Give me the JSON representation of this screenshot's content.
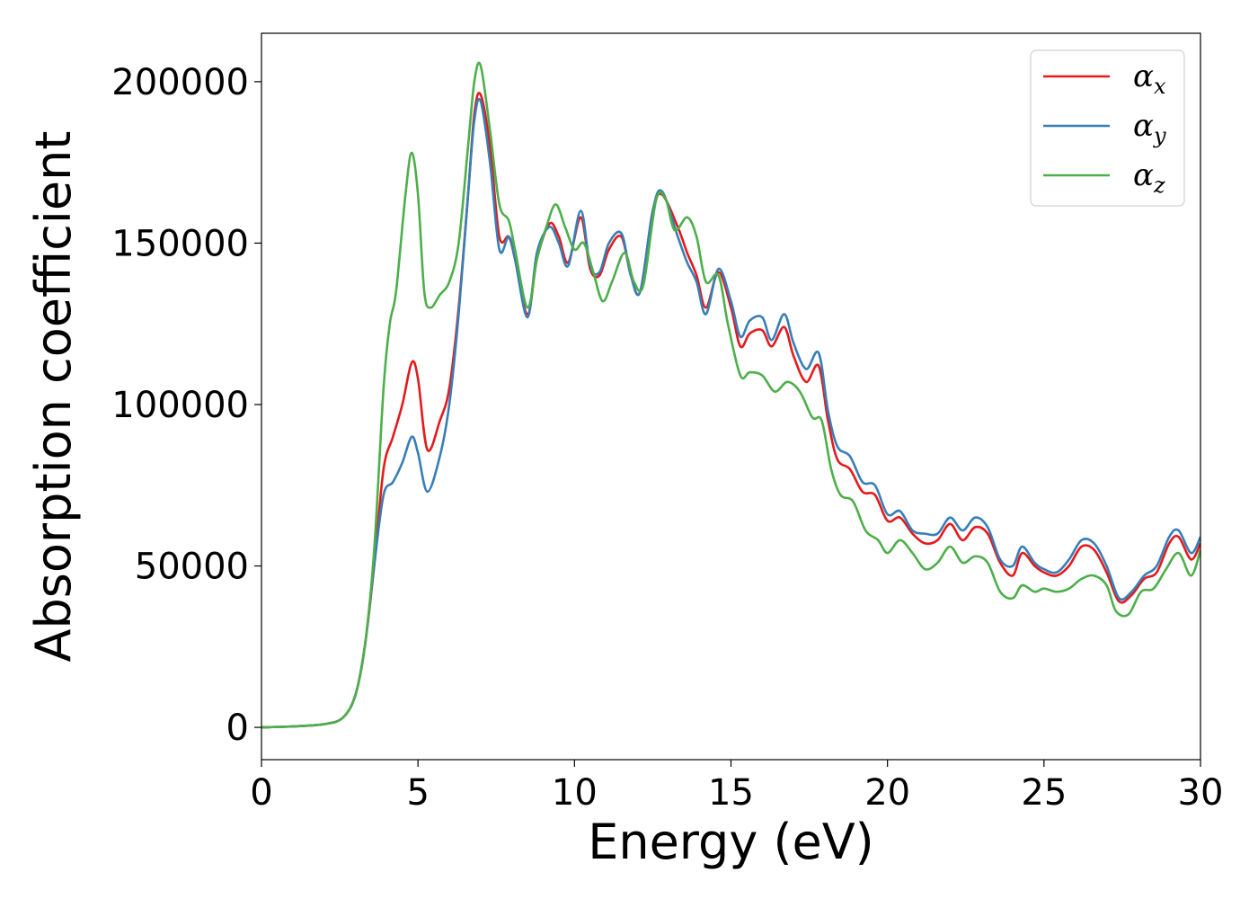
{
  "chart_data": {
    "type": "line",
    "title": "",
    "xlabel": "Energy (eV)",
    "ylabel": "Absorption coefficient",
    "xlim": [
      0,
      30
    ],
    "ylim": [
      -10000,
      215000
    ],
    "xticks": [
      0,
      5,
      10,
      15,
      20,
      25,
      30
    ],
    "yticks": [
      0,
      50000,
      100000,
      150000,
      200000
    ],
    "grid": false,
    "legend_position": "top-right",
    "series": [
      {
        "name": "αx",
        "symbol": "α",
        "subscript": "x",
        "color": "#e41a1c",
        "points": [
          [
            0,
            0
          ],
          [
            1,
            300
          ],
          [
            2,
            1000
          ],
          [
            2.6,
            3000
          ],
          [
            3.0,
            10000
          ],
          [
            3.3,
            25000
          ],
          [
            3.6,
            50000
          ],
          [
            3.9,
            80000
          ],
          [
            4.2,
            90000
          ],
          [
            4.5,
            100000
          ],
          [
            4.8,
            113000
          ],
          [
            5.0,
            108000
          ],
          [
            5.3,
            86000
          ],
          [
            5.7,
            95000
          ],
          [
            6.0,
            105000
          ],
          [
            6.3,
            130000
          ],
          [
            6.6,
            165000
          ],
          [
            6.8,
            190000
          ],
          [
            7.0,
            196000
          ],
          [
            7.3,
            180000
          ],
          [
            7.6,
            152000
          ],
          [
            7.9,
            152000
          ],
          [
            8.1,
            145000
          ],
          [
            8.5,
            128000
          ],
          [
            8.8,
            145000
          ],
          [
            9.2,
            156000
          ],
          [
            9.5,
            152000
          ],
          [
            9.8,
            144000
          ],
          [
            10.2,
            158000
          ],
          [
            10.5,
            142000
          ],
          [
            10.8,
            140000
          ],
          [
            11.1,
            148000
          ],
          [
            11.5,
            152000
          ],
          [
            11.8,
            140000
          ],
          [
            12.1,
            135000
          ],
          [
            12.5,
            160000
          ],
          [
            12.8,
            165000
          ],
          [
            13.3,
            155000
          ],
          [
            13.6,
            147000
          ],
          [
            13.9,
            140000
          ],
          [
            14.2,
            130000
          ],
          [
            14.6,
            141000
          ],
          [
            15.0,
            130000
          ],
          [
            15.3,
            118000
          ],
          [
            15.6,
            122000
          ],
          [
            16.0,
            123000
          ],
          [
            16.3,
            118000
          ],
          [
            16.7,
            124000
          ],
          [
            17.0,
            115000
          ],
          [
            17.4,
            107000
          ],
          [
            17.8,
            112000
          ],
          [
            18.1,
            95000
          ],
          [
            18.4,
            83000
          ],
          [
            18.8,
            80000
          ],
          [
            19.2,
            73000
          ],
          [
            19.6,
            72000
          ],
          [
            20.0,
            64000
          ],
          [
            20.4,
            65000
          ],
          [
            20.8,
            60000
          ],
          [
            21.2,
            57000
          ],
          [
            21.6,
            58000
          ],
          [
            22.0,
            63000
          ],
          [
            22.4,
            58000
          ],
          [
            22.8,
            62000
          ],
          [
            23.2,
            60000
          ],
          [
            23.6,
            51000
          ],
          [
            24.0,
            47000
          ],
          [
            24.3,
            54000
          ],
          [
            24.7,
            50000
          ],
          [
            25.0,
            48000
          ],
          [
            25.4,
            47000
          ],
          [
            25.8,
            50000
          ],
          [
            26.2,
            56000
          ],
          [
            26.6,
            55000
          ],
          [
            27.0,
            48000
          ],
          [
            27.4,
            39000
          ],
          [
            27.8,
            41000
          ],
          [
            28.2,
            46000
          ],
          [
            28.6,
            48000
          ],
          [
            29.0,
            57000
          ],
          [
            29.3,
            59000
          ],
          [
            29.7,
            52000
          ],
          [
            30.0,
            57000
          ]
        ]
      },
      {
        "name": "αy",
        "symbol": "α",
        "subscript": "y",
        "color": "#377eb8",
        "points": [
          [
            0,
            0
          ],
          [
            1,
            300
          ],
          [
            2,
            1000
          ],
          [
            2.6,
            3000
          ],
          [
            3.0,
            10000
          ],
          [
            3.3,
            25000
          ],
          [
            3.6,
            50000
          ],
          [
            3.9,
            72000
          ],
          [
            4.2,
            76000
          ],
          [
            4.5,
            82000
          ],
          [
            4.8,
            90000
          ],
          [
            5.0,
            85000
          ],
          [
            5.3,
            73000
          ],
          [
            5.7,
            84000
          ],
          [
            6.0,
            100000
          ],
          [
            6.3,
            128000
          ],
          [
            6.6,
            165000
          ],
          [
            6.8,
            188000
          ],
          [
            7.0,
            194000
          ],
          [
            7.3,
            175000
          ],
          [
            7.6,
            148000
          ],
          [
            7.9,
            152000
          ],
          [
            8.1,
            145000
          ],
          [
            8.5,
            127000
          ],
          [
            8.8,
            147000
          ],
          [
            9.2,
            155000
          ],
          [
            9.5,
            150000
          ],
          [
            9.8,
            143000
          ],
          [
            10.2,
            160000
          ],
          [
            10.5,
            143000
          ],
          [
            10.8,
            141000
          ],
          [
            11.1,
            150000
          ],
          [
            11.5,
            153000
          ],
          [
            11.8,
            140000
          ],
          [
            12.1,
            135000
          ],
          [
            12.5,
            160000
          ],
          [
            12.8,
            166000
          ],
          [
            13.3,
            152000
          ],
          [
            13.6,
            144000
          ],
          [
            13.9,
            138000
          ],
          [
            14.2,
            128000
          ],
          [
            14.6,
            142000
          ],
          [
            15.0,
            132000
          ],
          [
            15.3,
            121000
          ],
          [
            15.6,
            126000
          ],
          [
            16.0,
            127000
          ],
          [
            16.3,
            120000
          ],
          [
            16.7,
            128000
          ],
          [
            17.0,
            119000
          ],
          [
            17.4,
            111000
          ],
          [
            17.8,
            116000
          ],
          [
            18.1,
            98000
          ],
          [
            18.4,
            87000
          ],
          [
            18.8,
            84000
          ],
          [
            19.2,
            76000
          ],
          [
            19.6,
            75000
          ],
          [
            20.0,
            66000
          ],
          [
            20.4,
            67000
          ],
          [
            20.8,
            61000
          ],
          [
            21.2,
            60000
          ],
          [
            21.6,
            60000
          ],
          [
            22.0,
            65000
          ],
          [
            22.4,
            61000
          ],
          [
            22.8,
            65000
          ],
          [
            23.2,
            62000
          ],
          [
            23.6,
            52000
          ],
          [
            24.0,
            50000
          ],
          [
            24.3,
            56000
          ],
          [
            24.7,
            51000
          ],
          [
            25.0,
            49000
          ],
          [
            25.4,
            48000
          ],
          [
            25.8,
            52000
          ],
          [
            26.2,
            58000
          ],
          [
            26.6,
            57000
          ],
          [
            27.0,
            50000
          ],
          [
            27.4,
            40000
          ],
          [
            27.8,
            42000
          ],
          [
            28.2,
            47000
          ],
          [
            28.6,
            50000
          ],
          [
            29.0,
            59000
          ],
          [
            29.3,
            61000
          ],
          [
            29.7,
            54000
          ],
          [
            30.0,
            59000
          ]
        ]
      },
      {
        "name": "αz",
        "symbol": "α",
        "subscript": "z",
        "color": "#4daf4a",
        "points": [
          [
            0,
            0
          ],
          [
            1,
            300
          ],
          [
            2,
            1000
          ],
          [
            2.6,
            3000
          ],
          [
            3.0,
            10000
          ],
          [
            3.3,
            25000
          ],
          [
            3.6,
            55000
          ],
          [
            3.9,
            105000
          ],
          [
            4.1,
            125000
          ],
          [
            4.3,
            135000
          ],
          [
            4.6,
            165000
          ],
          [
            4.8,
            178000
          ],
          [
            5.0,
            165000
          ],
          [
            5.2,
            135000
          ],
          [
            5.4,
            130000
          ],
          [
            5.7,
            134000
          ],
          [
            6.0,
            138000
          ],
          [
            6.3,
            150000
          ],
          [
            6.6,
            180000
          ],
          [
            6.8,
            200000
          ],
          [
            7.0,
            205000
          ],
          [
            7.3,
            185000
          ],
          [
            7.6,
            162000
          ],
          [
            7.9,
            157000
          ],
          [
            8.1,
            148000
          ],
          [
            8.5,
            130000
          ],
          [
            8.8,
            145000
          ],
          [
            9.1,
            155000
          ],
          [
            9.4,
            162000
          ],
          [
            9.7,
            155000
          ],
          [
            10.0,
            148000
          ],
          [
            10.3,
            150000
          ],
          [
            10.6,
            141000
          ],
          [
            10.9,
            132000
          ],
          [
            11.2,
            138000
          ],
          [
            11.6,
            147000
          ],
          [
            11.9,
            138000
          ],
          [
            12.2,
            137000
          ],
          [
            12.6,
            163000
          ],
          [
            12.9,
            164000
          ],
          [
            13.2,
            154000
          ],
          [
            13.6,
            158000
          ],
          [
            13.9,
            152000
          ],
          [
            14.2,
            138000
          ],
          [
            14.6,
            140000
          ],
          [
            14.9,
            125000
          ],
          [
            15.3,
            109000
          ],
          [
            15.6,
            110000
          ],
          [
            16.0,
            109000
          ],
          [
            16.4,
            104000
          ],
          [
            16.8,
            107000
          ],
          [
            17.2,
            104000
          ],
          [
            17.6,
            96000
          ],
          [
            17.9,
            95000
          ],
          [
            18.2,
            80000
          ],
          [
            18.5,
            72000
          ],
          [
            18.9,
            70000
          ],
          [
            19.3,
            61000
          ],
          [
            19.7,
            58000
          ],
          [
            20.0,
            54000
          ],
          [
            20.4,
            58000
          ],
          [
            20.8,
            54000
          ],
          [
            21.2,
            49000
          ],
          [
            21.6,
            51000
          ],
          [
            22.0,
            56000
          ],
          [
            22.4,
            51000
          ],
          [
            22.8,
            53000
          ],
          [
            23.2,
            51000
          ],
          [
            23.6,
            42000
          ],
          [
            24.0,
            40000
          ],
          [
            24.3,
            44000
          ],
          [
            24.7,
            42000
          ],
          [
            25.0,
            43000
          ],
          [
            25.4,
            42000
          ],
          [
            25.8,
            43000
          ],
          [
            26.2,
            46000
          ],
          [
            26.6,
            47000
          ],
          [
            27.0,
            44000
          ],
          [
            27.3,
            36000
          ],
          [
            27.7,
            35000
          ],
          [
            28.1,
            42000
          ],
          [
            28.5,
            43000
          ],
          [
            28.9,
            49000
          ],
          [
            29.3,
            54000
          ],
          [
            29.7,
            47000
          ],
          [
            30.0,
            55000
          ]
        ]
      }
    ]
  }
}
